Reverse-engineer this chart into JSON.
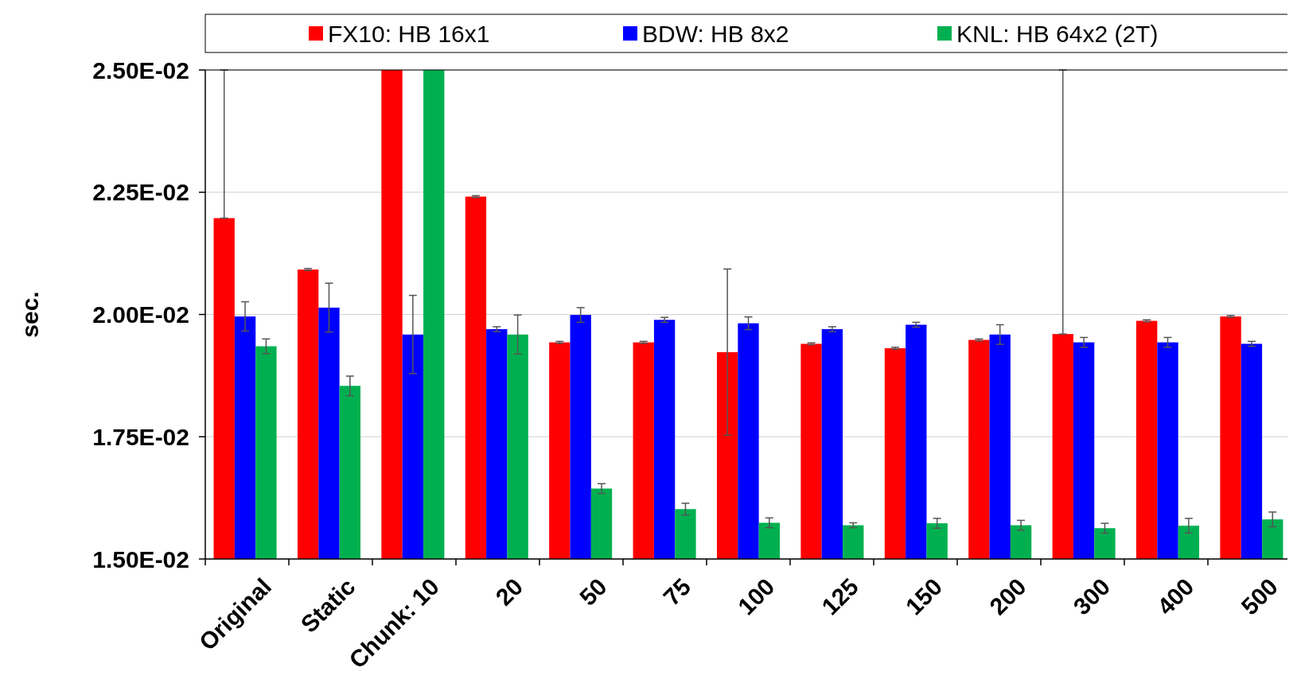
{
  "chart_data": {
    "type": "bar",
    "ylabel": "sec.",
    "categories": [
      "Original",
      "Static",
      "Chunk: 10",
      "20",
      "50",
      "75",
      "100",
      "125",
      "150",
      "200",
      "300",
      "400",
      "500"
    ],
    "series": [
      {
        "name": "FX10: HB 16x1",
        "color": "#ff0000",
        "values": [
          0.02197,
          0.02092,
          0.025,
          0.02241,
          0.01943,
          0.01943,
          0.01923,
          0.0194,
          0.01931,
          0.01948,
          0.0196,
          0.01987,
          0.01996
        ],
        "errors": [
          [
            0.02197,
            0.025
          ],
          2e-05,
          null,
          2e-05,
          2e-05,
          2e-05,
          0.0017,
          2e-05,
          2e-05,
          2e-05,
          [
            0.0196,
            0.025
          ],
          2e-05,
          2e-05
        ]
      },
      {
        "name": "BDW: HB 8x2",
        "color": "#0000ff",
        "values": [
          0.01996,
          0.02014,
          0.01959,
          0.0197,
          0.01999,
          0.01989,
          0.01982,
          0.0197,
          0.01979,
          0.01959,
          0.01943,
          0.01943,
          0.0194
        ],
        "errors": [
          0.0003,
          0.0005,
          0.0008,
          5e-05,
          0.00015,
          5e-05,
          0.00013,
          5e-05,
          5e-05,
          0.0002,
          0.0001,
          0.0001,
          5e-05
        ]
      },
      {
        "name": "KNL: HB 64x2 (2T)",
        "color": "#00b050",
        "values": [
          0.01935,
          0.01854,
          0.025,
          0.01959,
          0.01644,
          0.01602,
          0.01574,
          0.01569,
          0.01573,
          0.01569,
          0.01563,
          0.01568,
          0.01581
        ],
        "errors": [
          0.00015,
          0.0002,
          null,
          0.0004,
          0.0001,
          0.00012,
          0.0001,
          5e-05,
          0.0001,
          0.0001,
          0.0001,
          0.00015,
          0.00015
        ]
      }
    ],
    "ylim": [
      0.015,
      0.025
    ],
    "yticks": [
      {
        "value": 0.015,
        "label": "1.50E-02"
      },
      {
        "value": 0.0175,
        "label": "1.75E-02"
      },
      {
        "value": 0.02,
        "label": "2.00E-02"
      },
      {
        "value": 0.0225,
        "label": "2.25E-02"
      },
      {
        "value": 0.025,
        "label": "2.50E-02"
      }
    ],
    "grid": "y",
    "legend": "top"
  }
}
